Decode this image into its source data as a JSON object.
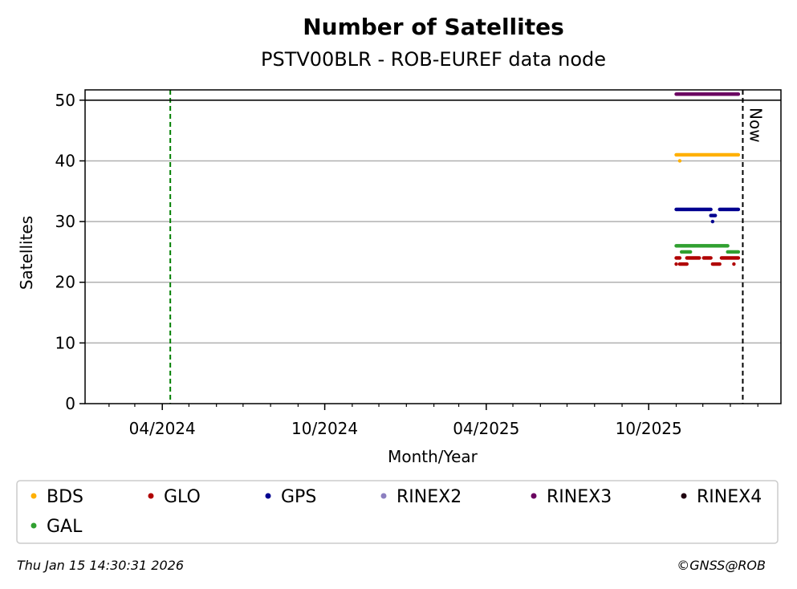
{
  "chart_data": {
    "type": "scatter",
    "title": "Number of Satellites",
    "subtitle": "PSTV00BLR - ROB-EUREF data node",
    "xlabel": "Month/Year",
    "ylabel": "Satellites",
    "x_type": "date",
    "xlim": [
      "2024-01-05",
      "2026-02-27"
    ],
    "ylim": [
      0,
      51.7
    ],
    "yticks": [
      0,
      10,
      20,
      30,
      40,
      50
    ],
    "xticks": [
      {
        "date": "2024-04-01",
        "label": "04/2024"
      },
      {
        "date": "2024-10-01",
        "label": "10/2024"
      },
      {
        "date": "2025-04-01",
        "label": "04/2025"
      },
      {
        "date": "2025-10-01",
        "label": "10/2025"
      }
    ],
    "grid": "horizontal",
    "reference_lines": [
      {
        "type": "vertical",
        "date": "2024-04-10",
        "color": "#008000",
        "style": "dashed"
      },
      {
        "type": "vertical",
        "date": "2026-01-15",
        "color": "#000000",
        "style": "dashed",
        "label": "Now"
      },
      {
        "type": "horizontal",
        "y": 50,
        "color": "#000000",
        "style": "solid"
      }
    ],
    "series": [
      {
        "name": "BDS",
        "color": "#FFB000",
        "points": [
          {
            "start": "2025-11-01",
            "end": "2026-01-10",
            "y": 41
          },
          {
            "date": "2025-11-05",
            "y": 40
          }
        ]
      },
      {
        "name": "GLO",
        "color": "#B00000",
        "points": [
          {
            "start": "2025-11-01",
            "end": "2025-11-05",
            "y": 24
          },
          {
            "start": "2025-11-13",
            "end": "2025-11-27",
            "y": 24
          },
          {
            "start": "2025-12-02",
            "end": "2025-12-10",
            "y": 24
          },
          {
            "start": "2025-12-22",
            "end": "2026-01-10",
            "y": 24
          },
          {
            "date": "2025-11-01",
            "y": 23
          },
          {
            "start": "2025-11-05",
            "end": "2025-11-13",
            "y": 23
          },
          {
            "start": "2025-12-12",
            "end": "2025-12-20",
            "y": 23
          },
          {
            "date": "2026-01-05",
            "y": 23
          }
        ]
      },
      {
        "name": "GPS",
        "color": "#000090",
        "points": [
          {
            "start": "2025-11-01",
            "end": "2025-12-10",
            "y": 32
          },
          {
            "start": "2025-12-20",
            "end": "2026-01-10",
            "y": 32
          },
          {
            "start": "2025-12-10",
            "end": "2025-12-15",
            "y": 31
          },
          {
            "date": "2025-12-12",
            "y": 30
          }
        ]
      },
      {
        "name": "RINEX2",
        "color": "#8C7FC0",
        "points": []
      },
      {
        "name": "RINEX3",
        "color": "#6A0060",
        "points": [
          {
            "start": "2025-11-01",
            "end": "2026-01-10",
            "y": 51
          }
        ]
      },
      {
        "name": "RINEX4",
        "color": "#200010",
        "points": []
      },
      {
        "name": "GAL",
        "color": "#30A030",
        "points": [
          {
            "start": "2025-11-01",
            "end": "2025-12-29",
            "y": 26
          },
          {
            "start": "2025-11-07",
            "end": "2025-11-17",
            "y": 25
          },
          {
            "start": "2025-12-29",
            "end": "2026-01-10",
            "y": 25
          }
        ]
      }
    ],
    "legend_placement": "bottom"
  },
  "footer": {
    "timestamp": "Thu Jan 15 14:30:31 2026",
    "credit": "©GNSS@ROB"
  }
}
